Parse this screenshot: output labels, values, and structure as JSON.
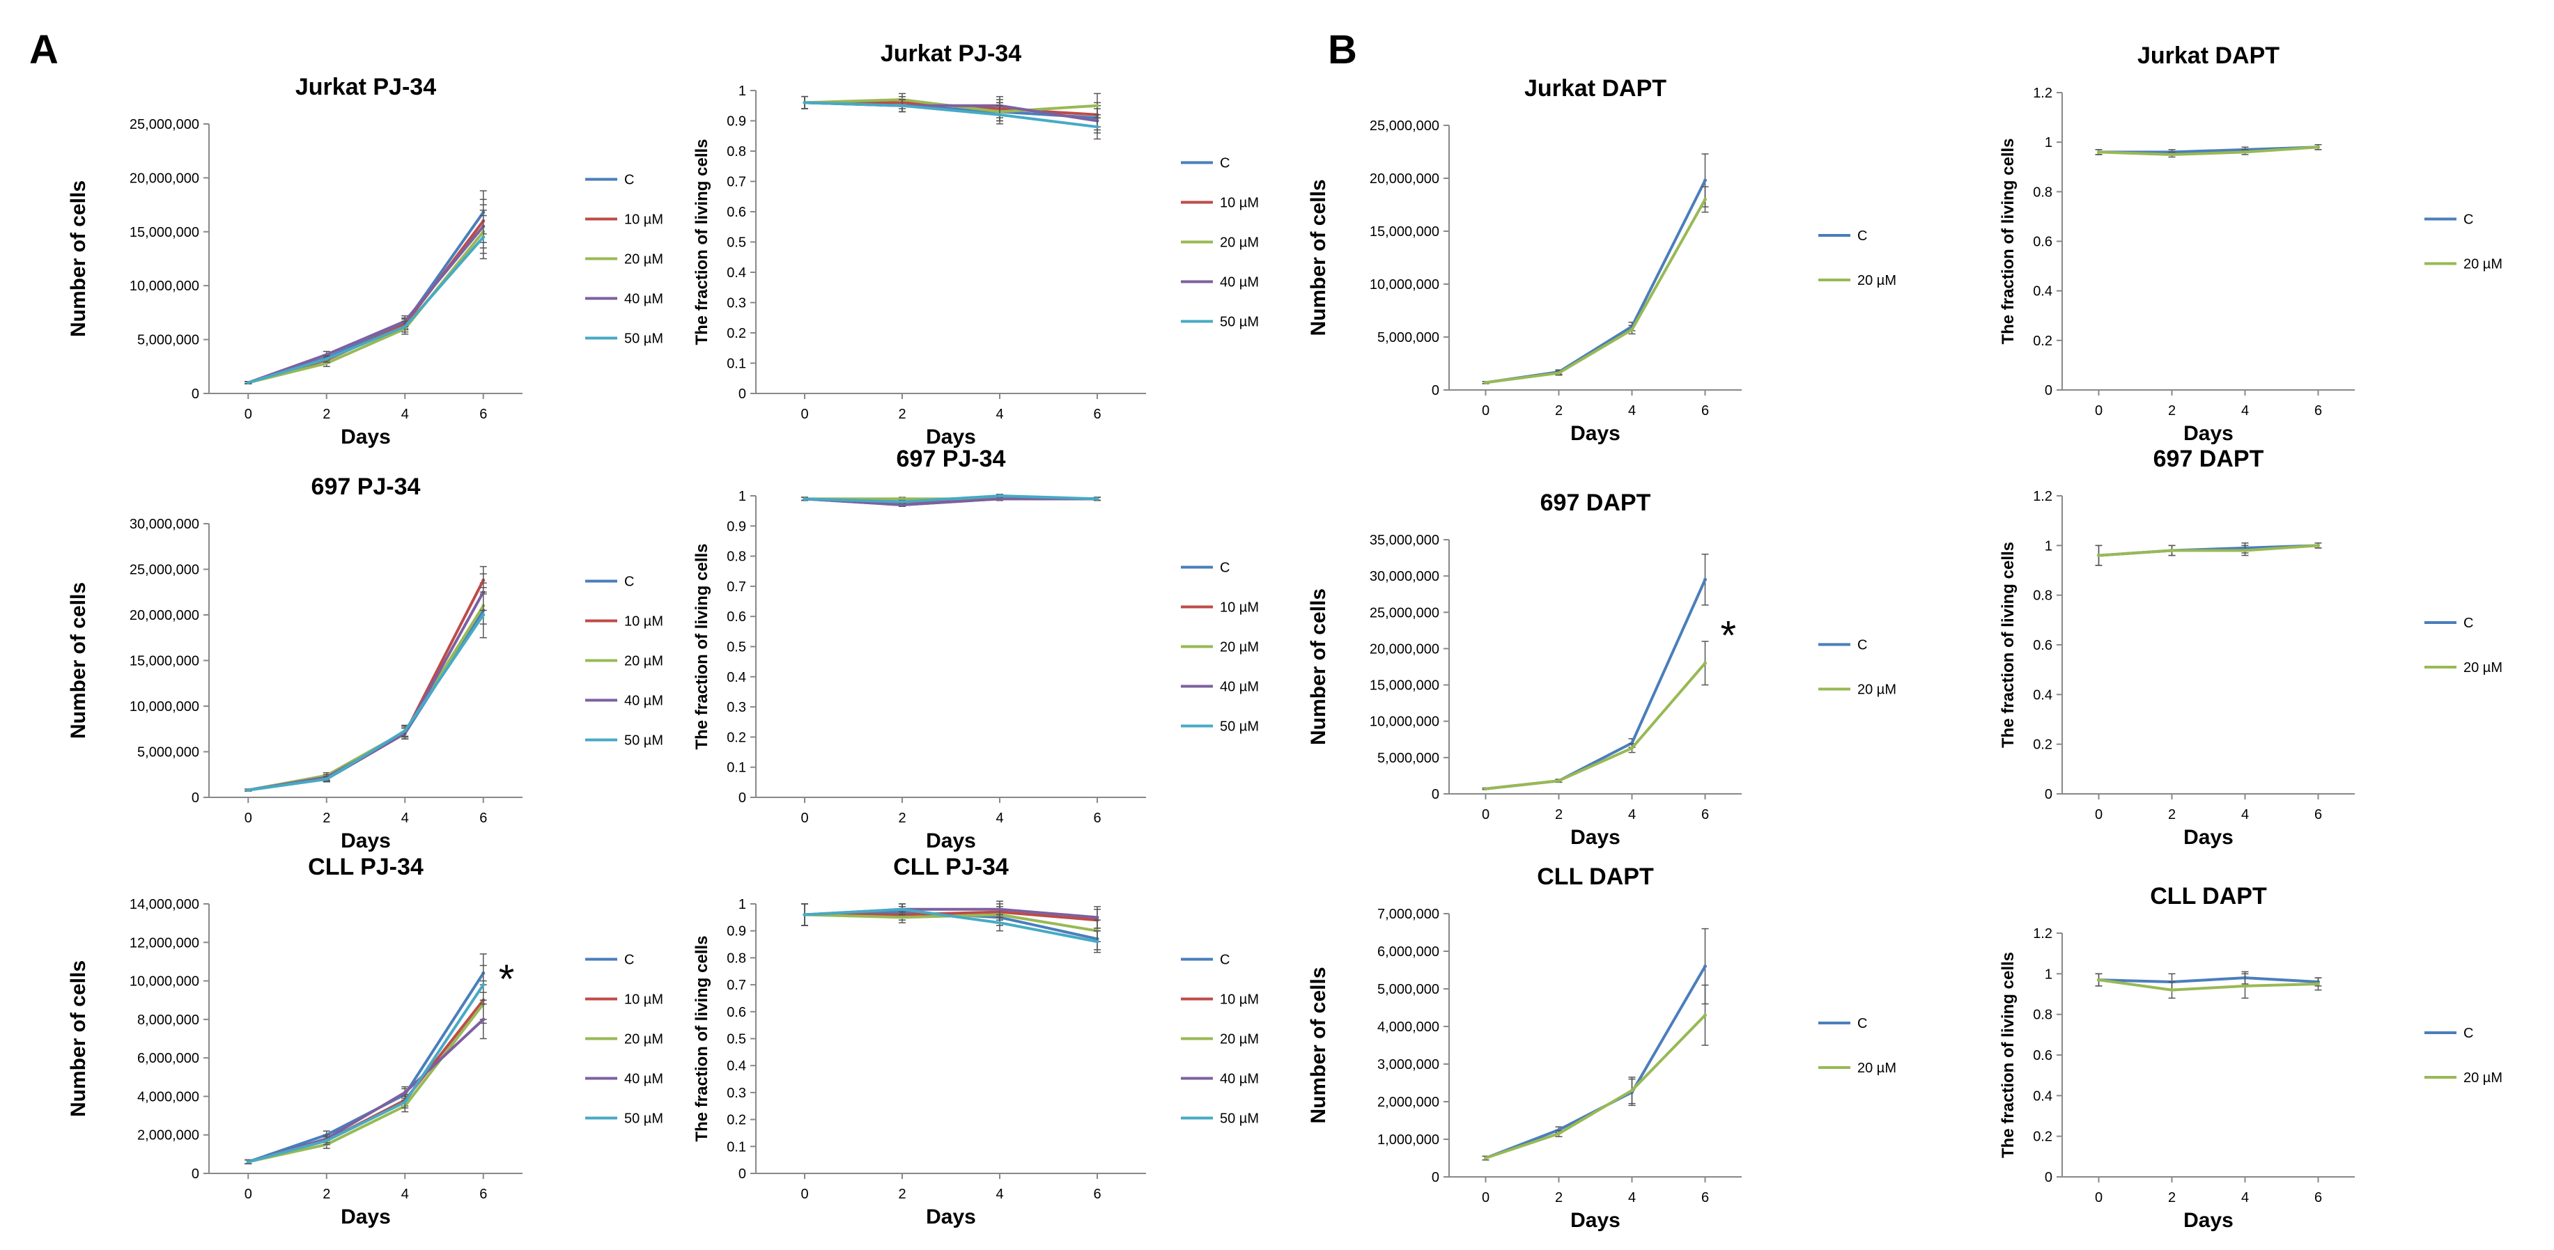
{
  "panel_labels": [
    "A",
    "B"
  ],
  "colors": {
    "C": "#4a7ebb",
    "10 µM": "#be4b48",
    "20 µM": "#98b954",
    "40 µM": "#7d60a0",
    "50 µM": "#46aac5",
    "axis": "#888888",
    "text": "#000000"
  },
  "chart_data": [
    {
      "type": "line",
      "title": "Jurkat PJ-34",
      "xlabel": "Days",
      "ylabel": "Number of cells",
      "x": [
        0,
        2,
        4,
        6
      ],
      "xlim": [
        -1,
        7
      ],
      "ylim": [
        0,
        25000000
      ],
      "yticks": [
        0,
        5000000,
        10000000,
        15000000,
        20000000,
        25000000
      ],
      "ytick_labels": [
        "0",
        "5,000,000",
        "10,000,000",
        "15,000,000",
        "20,000,000",
        "25,000,000"
      ],
      "series": [
        {
          "name": "C",
          "values": [
            1000000,
            3300000,
            6500000,
            16800000
          ],
          "err": [
            100000,
            300000,
            500000,
            2000000
          ]
        },
        {
          "name": "10 µM",
          "values": [
            1000000,
            3100000,
            6400000,
            16000000
          ],
          "err": [
            100000,
            300000,
            500000,
            2000000
          ]
        },
        {
          "name": "20 µM",
          "values": [
            1000000,
            2800000,
            6000000,
            15000000
          ],
          "err": [
            100000,
            300000,
            500000,
            2000000
          ]
        },
        {
          "name": "40 µM",
          "values": [
            1000000,
            3600000,
            6700000,
            15500000
          ],
          "err": [
            100000,
            300000,
            500000,
            2000000
          ]
        },
        {
          "name": "50 µM",
          "values": [
            1000000,
            3200000,
            6200000,
            14500000
          ],
          "err": [
            100000,
            300000,
            500000,
            2000000
          ]
        }
      ]
    },
    {
      "type": "line",
      "title": "Jurkat PJ-34",
      "xlabel": "Days",
      "ylabel": "The fraction of living cells",
      "x": [
        0,
        2,
        4,
        6
      ],
      "xlim": [
        -1,
        7
      ],
      "ylim": [
        0,
        1
      ],
      "yticks": [
        0,
        0.1,
        0.2,
        0.3,
        0.4,
        0.5,
        0.6,
        0.7,
        0.8,
        0.9,
        1
      ],
      "ytick_labels": [
        "0",
        "0.1",
        "0.2",
        "0.3",
        "0.4",
        "0.5",
        "0.6",
        "0.7",
        "0.8",
        "0.9",
        "1"
      ],
      "series": [
        {
          "name": "C",
          "values": [
            0.96,
            0.95,
            0.93,
            0.91
          ],
          "err": [
            0.02,
            0.02,
            0.03,
            0.04
          ]
        },
        {
          "name": "10 µM",
          "values": [
            0.96,
            0.96,
            0.94,
            0.92
          ],
          "err": [
            0.02,
            0.02,
            0.03,
            0.04
          ]
        },
        {
          "name": "20 µM",
          "values": [
            0.96,
            0.97,
            0.93,
            0.95
          ],
          "err": [
            0.02,
            0.02,
            0.03,
            0.04
          ]
        },
        {
          "name": "40 µM",
          "values": [
            0.96,
            0.95,
            0.95,
            0.9
          ],
          "err": [
            0.02,
            0.02,
            0.03,
            0.04
          ]
        },
        {
          "name": "50 µM",
          "values": [
            0.96,
            0.95,
            0.92,
            0.88
          ],
          "err": [
            0.02,
            0.02,
            0.03,
            0.04
          ]
        }
      ]
    },
    {
      "type": "line",
      "title": "Jurkat DAPT",
      "xlabel": "Days",
      "ylabel": "Number of cells",
      "x": [
        0,
        2,
        4,
        6
      ],
      "xlim": [
        -1,
        7
      ],
      "ylim": [
        0,
        25000000
      ],
      "yticks": [
        0,
        5000000,
        10000000,
        15000000,
        20000000,
        25000000
      ],
      "ytick_labels": [
        "0",
        "5,000,000",
        "10,000,000",
        "15,000,000",
        "20,000,000",
        "25,000,000"
      ],
      "series": [
        {
          "name": "C",
          "values": [
            700000,
            1700000,
            6000000,
            19800000
          ],
          "err": [
            100000,
            200000,
            400000,
            2500000
          ]
        },
        {
          "name": "20 µM",
          "values": [
            700000,
            1600000,
            5700000,
            18000000
          ],
          "err": [
            100000,
            200000,
            400000,
            1200000
          ]
        }
      ]
    },
    {
      "type": "line",
      "title": "Jurkat DAPT",
      "xlabel": "Days",
      "ylabel": "The fraction of living cells",
      "x": [
        0,
        2,
        4,
        6
      ],
      "xlim": [
        -1,
        7
      ],
      "ylim": [
        0,
        1.2
      ],
      "yticks": [
        0,
        0.2,
        0.4,
        0.6,
        0.8,
        1,
        1.2
      ],
      "ytick_labels": [
        "0",
        "0.2",
        "0.4",
        "0.6",
        "0.8",
        "1",
        "1.2"
      ],
      "series": [
        {
          "name": "C",
          "values": [
            0.96,
            0.96,
            0.97,
            0.98
          ],
          "err": [
            0.01,
            0.01,
            0.01,
            0.01
          ]
        },
        {
          "name": "20 µM",
          "values": [
            0.96,
            0.95,
            0.96,
            0.98
          ],
          "err": [
            0.01,
            0.01,
            0.01,
            0.01
          ]
        }
      ]
    },
    {
      "type": "line",
      "title": "697 PJ-34",
      "xlabel": "Days",
      "ylabel": "Number of cells",
      "x": [
        0,
        2,
        4,
        6
      ],
      "xlim": [
        -1,
        7
      ],
      "ylim": [
        0,
        30000000
      ],
      "yticks": [
        0,
        5000000,
        10000000,
        15000000,
        20000000,
        25000000,
        30000000
      ],
      "ytick_labels": [
        "0",
        "5,000,000",
        "10,000,000",
        "15,000,000",
        "20,000,000",
        "25,000,000",
        "30,000,000"
      ],
      "series": [
        {
          "name": "C",
          "values": [
            800000,
            2000000,
            7000000,
            20500000
          ],
          "err": [
            100000,
            300000,
            600000,
            3000000
          ]
        },
        {
          "name": "10 µM",
          "values": [
            800000,
            2100000,
            7000000,
            23800000
          ],
          "err": [
            100000,
            300000,
            600000,
            1500000
          ]
        },
        {
          "name": "20 µM",
          "values": [
            800000,
            2400000,
            7200000,
            21000000
          ],
          "err": [
            100000,
            300000,
            600000,
            2000000
          ]
        },
        {
          "name": "40 µM",
          "values": [
            800000,
            2200000,
            7000000,
            22500000
          ],
          "err": [
            100000,
            300000,
            600000,
            2000000
          ]
        },
        {
          "name": "50 µM",
          "values": [
            800000,
            2000000,
            7300000,
            20000000
          ],
          "err": [
            100000,
            300000,
            600000,
            2500000
          ]
        }
      ]
    },
    {
      "type": "line",
      "title": "697 PJ-34",
      "xlabel": "Days",
      "ylabel": "The fraction of living cells",
      "x": [
        0,
        2,
        4,
        6
      ],
      "xlim": [
        -1,
        7
      ],
      "ylim": [
        0,
        1
      ],
      "yticks": [
        0,
        0.1,
        0.2,
        0.3,
        0.4,
        0.5,
        0.6,
        0.7,
        0.8,
        0.9,
        1
      ],
      "ytick_labels": [
        "0",
        "0.1",
        "0.2",
        "0.3",
        "0.4",
        "0.5",
        "0.6",
        "0.7",
        "0.8",
        "0.9",
        "1"
      ],
      "series": [
        {
          "name": "C",
          "values": [
            0.99,
            0.97,
            0.99,
            0.99
          ],
          "err": [
            0.005,
            0.005,
            0.005,
            0.005
          ]
        },
        {
          "name": "10 µM",
          "values": [
            0.99,
            0.98,
            0.99,
            0.99
          ],
          "err": [
            0.005,
            0.005,
            0.005,
            0.005
          ]
        },
        {
          "name": "20 µM",
          "values": [
            0.99,
            0.99,
            0.99,
            0.99
          ],
          "err": [
            0.005,
            0.005,
            0.005,
            0.005
          ]
        },
        {
          "name": "40 µM",
          "values": [
            0.99,
            0.97,
            0.99,
            0.99
          ],
          "err": [
            0.005,
            0.005,
            0.005,
            0.005
          ]
        },
        {
          "name": "50 µM",
          "values": [
            0.99,
            0.98,
            1.0,
            0.99
          ],
          "err": [
            0.005,
            0.005,
            0.005,
            0.005
          ]
        }
      ]
    },
    {
      "type": "line",
      "title": "697 DAPT",
      "xlabel": "Days",
      "ylabel": "Number of cells",
      "x": [
        0,
        2,
        4,
        6
      ],
      "xlim": [
        -1,
        7
      ],
      "ylim": [
        0,
        35000000
      ],
      "yticks": [
        0,
        5000000,
        10000000,
        15000000,
        20000000,
        25000000,
        30000000,
        35000000
      ],
      "ytick_labels": [
        "0",
        "5,000,000",
        "10,000,000",
        "15,000,000",
        "20,000,000",
        "25,000,000",
        "30,000,000",
        "35,000,000"
      ],
      "annotation": "*",
      "series": [
        {
          "name": "C",
          "values": [
            700000,
            1800000,
            7000000,
            29500000
          ],
          "err": [
            100000,
            200000,
            600000,
            3500000
          ]
        },
        {
          "name": "20 µM",
          "values": [
            700000,
            1800000,
            6300000,
            18000000
          ],
          "err": [
            100000,
            200000,
            600000,
            3000000
          ]
        }
      ]
    },
    {
      "type": "line",
      "title": "697 DAPT",
      "xlabel": "Days",
      "ylabel": "The fraction of living cells",
      "x": [
        0,
        2,
        4,
        6
      ],
      "xlim": [
        -1,
        7
      ],
      "ylim": [
        0,
        1.2
      ],
      "yticks": [
        0,
        0.2,
        0.4,
        0.6,
        0.8,
        1,
        1.2
      ],
      "ytick_labels": [
        "0",
        "0.2",
        "0.4",
        "0.6",
        "0.8",
        "1",
        "1.2"
      ],
      "series": [
        {
          "name": "C",
          "values": [
            0.96,
            0.98,
            0.99,
            1.0
          ],
          "err": [
            0.04,
            0.02,
            0.02,
            0.01
          ]
        },
        {
          "name": "20 µM",
          "values": [
            0.96,
            0.98,
            0.98,
            1.0
          ],
          "err": [
            0.04,
            0.02,
            0.02,
            0.01
          ]
        }
      ]
    },
    {
      "type": "line",
      "title": "CLL PJ-34",
      "xlabel": "Days",
      "ylabel": "Number of cells",
      "x": [
        0,
        2,
        4,
        6
      ],
      "xlim": [
        -1,
        7
      ],
      "ylim": [
        0,
        14000000
      ],
      "yticks": [
        0,
        2000000,
        4000000,
        6000000,
        8000000,
        10000000,
        12000000,
        14000000
      ],
      "ytick_labels": [
        "0",
        "2,000,000",
        "4,000,000",
        "6,000,000",
        "8,000,000",
        "10,000,000",
        "12,000,000",
        "14,000,000"
      ],
      "annotation": "*",
      "series": [
        {
          "name": "C",
          "values": [
            600000,
            2000000,
            4100000,
            10400000
          ],
          "err": [
            100000,
            200000,
            300000,
            1000000
          ]
        },
        {
          "name": "10 µM",
          "values": [
            600000,
            1700000,
            3800000,
            9000000
          ],
          "err": [
            100000,
            200000,
            300000,
            1000000
          ]
        },
        {
          "name": "20 µM",
          "values": [
            600000,
            1500000,
            3500000,
            8800000
          ],
          "err": [
            100000,
            200000,
            300000,
            1000000
          ]
        },
        {
          "name": "40 µM",
          "values": [
            600000,
            1800000,
            4200000,
            8000000
          ],
          "err": [
            100000,
            200000,
            300000,
            1000000
          ]
        },
        {
          "name": "50 µM",
          "values": [
            600000,
            1700000,
            3700000,
            9800000
          ],
          "err": [
            100000,
            200000,
            300000,
            1000000
          ]
        }
      ]
    },
    {
      "type": "line",
      "title": "CLL PJ-34",
      "xlabel": "Days",
      "ylabel": "The fraction of living cells",
      "x": [
        0,
        2,
        4,
        6
      ],
      "xlim": [
        -1,
        7
      ],
      "ylim": [
        0,
        1
      ],
      "yticks": [
        0,
        0.1,
        0.2,
        0.3,
        0.4,
        0.5,
        0.6,
        0.7,
        0.8,
        0.9,
        1
      ],
      "ytick_labels": [
        "0",
        "0.1",
        "0.2",
        "0.3",
        "0.4",
        "0.5",
        "0.6",
        "0.7",
        "0.8",
        "0.9",
        "1"
      ],
      "series": [
        {
          "name": "C",
          "values": [
            0.96,
            0.97,
            0.95,
            0.87
          ],
          "err": [
            0.04,
            0.02,
            0.03,
            0.04
          ]
        },
        {
          "name": "10 µM",
          "values": [
            0.96,
            0.96,
            0.97,
            0.94
          ],
          "err": [
            0.04,
            0.02,
            0.03,
            0.04
          ]
        },
        {
          "name": "20 µM",
          "values": [
            0.96,
            0.95,
            0.96,
            0.9
          ],
          "err": [
            0.04,
            0.02,
            0.03,
            0.04
          ]
        },
        {
          "name": "40 µM",
          "values": [
            0.96,
            0.98,
            0.98,
            0.95
          ],
          "err": [
            0.04,
            0.02,
            0.03,
            0.04
          ]
        },
        {
          "name": "50 µM",
          "values": [
            0.96,
            0.98,
            0.93,
            0.86
          ],
          "err": [
            0.04,
            0.02,
            0.03,
            0.04
          ]
        }
      ]
    },
    {
      "type": "line",
      "title": "CLL DAPT",
      "xlabel": "Days",
      "ylabel": "Number of cells",
      "x": [
        0,
        2,
        4,
        6
      ],
      "xlim": [
        -1,
        7
      ],
      "ylim": [
        0,
        7000000
      ],
      "yticks": [
        0,
        1000000,
        2000000,
        3000000,
        4000000,
        5000000,
        6000000,
        7000000
      ],
      "ytick_labels": [
        "0",
        "1,000,000",
        "2,000,000",
        "3,000,000",
        "4,000,000",
        "5,000,000",
        "6,000,000",
        "7,000,000"
      ],
      "series": [
        {
          "name": "C",
          "values": [
            500000,
            1250000,
            2250000,
            5600000
          ],
          "err": [
            50000,
            80000,
            350000,
            1000000
          ]
        },
        {
          "name": "20 µM",
          "values": [
            500000,
            1150000,
            2300000,
            4300000
          ],
          "err": [
            50000,
            80000,
            350000,
            800000
          ]
        }
      ]
    },
    {
      "type": "line",
      "title": "CLL DAPT",
      "xlabel": "Days",
      "ylabel": "The fraction of living cells",
      "x": [
        0,
        2,
        4,
        6
      ],
      "xlim": [
        -1,
        7
      ],
      "ylim": [
        0,
        1.2
      ],
      "yticks": [
        0,
        0.2,
        0.4,
        0.6,
        0.8,
        1,
        1.2
      ],
      "ytick_labels": [
        "0",
        "0.2",
        "0.4",
        "0.6",
        "0.8",
        "1",
        "1.2"
      ],
      "series": [
        {
          "name": "C",
          "values": [
            0.97,
            0.96,
            0.98,
            0.96
          ],
          "err": [
            0.03,
            0.04,
            0.03,
            0.02
          ]
        },
        {
          "name": "20 µM",
          "values": [
            0.97,
            0.92,
            0.94,
            0.95
          ],
          "err": [
            0.03,
            0.04,
            0.06,
            0.03
          ]
        }
      ]
    }
  ]
}
